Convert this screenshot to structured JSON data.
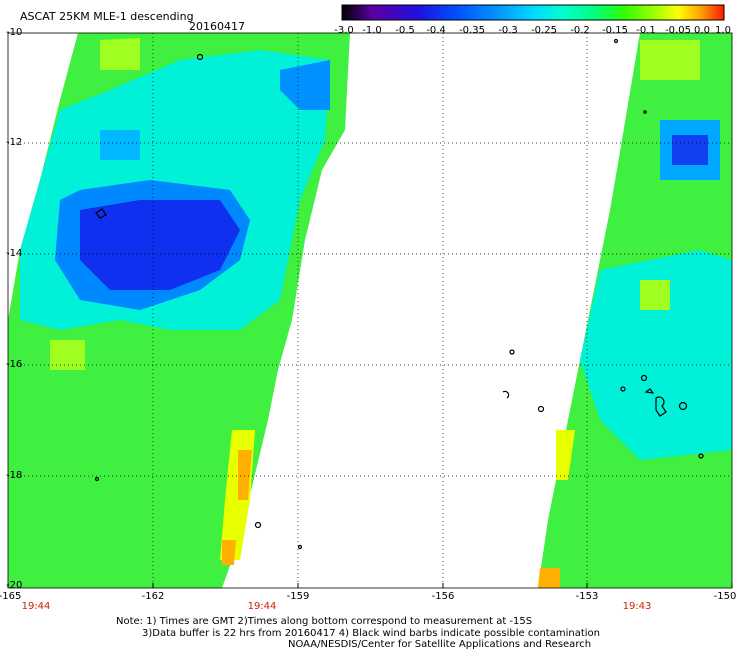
{
  "header": {
    "title": "ASCAT 25KM MLE-1 descending",
    "date": "20160417"
  },
  "colorbar": {
    "ticks": [
      "-3.0",
      "-1.0",
      "-0.5",
      "-0.4",
      "-0.35",
      "-0.3",
      "-0.25",
      "-0.2",
      "-0.15",
      "-0.1",
      "-0.05",
      "0.0",
      "1.0"
    ],
    "colors": [
      "#000000",
      "#5a00a0",
      "#2010e0",
      "#0050ff",
      "#0090ff",
      "#00d0ff",
      "#00ffe0",
      "#00ff90",
      "#30ff00",
      "#a0ff00",
      "#ffff00",
      "#ffa000",
      "#ff2000"
    ]
  },
  "map": {
    "lon_labels": [
      "-165",
      "-162",
      "-159",
      "-156",
      "-153",
      "-150"
    ],
    "lat_labels": [
      "-10",
      "-12",
      "-14",
      "-16",
      "-18",
      "-20"
    ],
    "lon_range": [
      -165,
      -150
    ],
    "lat_range": [
      -10,
      -20
    ],
    "pass_times": [
      {
        "label": "19:44",
        "lon": -165
      },
      {
        "label": "19:44",
        "lon": -159.8
      },
      {
        "label": "19:43",
        "lon": -152.5
      }
    ]
  },
  "footer": {
    "note_line1": "Note: 1) Times are GMT 2)Times along bottom correspond to measurement at -15S",
    "note_line2": "3)Data buffer is 22 hrs from 20160417 4) Black wind barbs indicate possible contamination",
    "credit": "NOAA/NESDIS/Center for Satellite Applications and Research"
  }
}
